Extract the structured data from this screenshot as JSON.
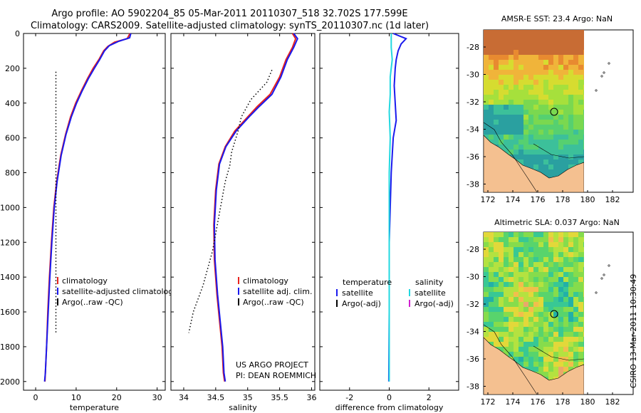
{
  "header": {
    "line1": "Argo profile: AO 5902204_85 05-Mar-2011 20110307_518 32.702S 177.599E",
    "line2": "Climatology: CARS2009. Satellite-adjusted climatology: synTS_20110307.nc (1d later)"
  },
  "credit": {
    "project": "US ARGO PROJECT",
    "pi": "PI: DEAN ROEMMICH"
  },
  "stamp": "CSIRO 13-Mar-2011 10:30:49",
  "colors": {
    "red": "#e8231e",
    "blue": "#1a1aee",
    "cyan": "#22d8e0",
    "magenta": "#d020d0",
    "black": "#000000"
  },
  "chart_data": [
    {
      "type": "line",
      "xlabel": "temperature",
      "xticks": [
        "0",
        "10",
        "20",
        "30"
      ],
      "xlim": [
        -3,
        32
      ],
      "ylim": [
        2050,
        0
      ],
      "yticks": [
        "0",
        "200",
        "400",
        "600",
        "800",
        "1000",
        "1200",
        "1400",
        "1600",
        "1800",
        "2000"
      ],
      "legend": [
        "climatology",
        "satellite-adjusted climatology",
        "Argo(..raw -QC)"
      ],
      "series": [
        {
          "name": "climatology",
          "color": "red",
          "x": [
            23.3,
            22.6,
            19.5,
            17.8,
            16.8,
            15.6,
            14.2,
            12.8,
            11.3,
            9.9,
            8.6,
            7.4,
            6.2,
            5.2,
            4.5,
            3.9,
            3.4,
            3.0,
            2.7,
            2.4,
            2.3
          ],
          "y": [
            0,
            30,
            50,
            75,
            100,
            150,
            200,
            260,
            330,
            400,
            480,
            580,
            700,
            850,
            1000,
            1200,
            1400,
            1600,
            1800,
            1950,
            2000
          ]
        },
        {
          "name": "satellite-adjusted climatology",
          "color": "blue",
          "x": [
            23.5,
            23.2,
            20.5,
            18.2,
            17.0,
            15.8,
            14.5,
            13.0,
            11.5,
            10.1,
            8.8,
            7.5,
            6.3,
            5.3,
            4.6,
            4.0,
            3.5,
            3.1,
            2.7,
            2.4,
            2.2
          ],
          "y": [
            0,
            25,
            45,
            70,
            100,
            150,
            200,
            260,
            330,
            400,
            480,
            580,
            700,
            850,
            1000,
            1200,
            1400,
            1600,
            1800,
            1950,
            2000
          ]
        },
        {
          "name": "Argo(..raw -QC)",
          "color": "black",
          "style": "dotted",
          "x": [
            5,
            5
          ],
          "y": [
            220,
            1730
          ]
        }
      ]
    },
    {
      "type": "line",
      "xlabel": "salinity",
      "xticks": [
        "34",
        "34.5",
        "35",
        "35.5",
        "36"
      ],
      "xlim": [
        33.8,
        36.05
      ],
      "ylim": [
        2050,
        0
      ],
      "legend": [
        "climatology",
        "satellite adj. clim.",
        "Argo(..raw -QC)"
      ],
      "series": [
        {
          "name": "climatology",
          "color": "red",
          "x": [
            35.7,
            35.75,
            35.7,
            35.6,
            35.5,
            35.35,
            35.15,
            35.0,
            34.8,
            34.65,
            34.55,
            34.5,
            34.47,
            34.48,
            34.52,
            34.56,
            34.6,
            34.62,
            34.64
          ],
          "y": [
            0,
            30,
            80,
            150,
            250,
            350,
            420,
            480,
            560,
            650,
            750,
            900,
            1100,
            1300,
            1500,
            1650,
            1800,
            1950,
            2000
          ]
        },
        {
          "name": "satellite adj. clim.",
          "color": "blue",
          "x": [
            35.72,
            35.78,
            35.72,
            35.62,
            35.52,
            35.38,
            35.18,
            35.02,
            34.82,
            34.66,
            34.56,
            34.51,
            34.48,
            34.49,
            34.53,
            34.57,
            34.61,
            34.63,
            34.65
          ],
          "y": [
            0,
            30,
            80,
            150,
            250,
            350,
            420,
            480,
            560,
            650,
            750,
            900,
            1100,
            1300,
            1500,
            1650,
            1800,
            1950,
            2000
          ]
        },
        {
          "name": "Argo(..raw -QC)",
          "color": "black",
          "style": "dotted",
          "x": [
            35.38,
            35.3,
            35.05,
            34.9,
            34.85,
            34.75,
            34.72,
            34.65,
            34.6,
            34.55,
            34.45,
            34.3,
            34.15,
            34.08
          ],
          "y": [
            210,
            280,
            380,
            480,
            560,
            680,
            760,
            850,
            950,
            1050,
            1250,
            1450,
            1600,
            1720
          ]
        }
      ]
    },
    {
      "type": "line",
      "xlabel": "difference from climatology",
      "xticks": [
        "-2",
        "0",
        "2"
      ],
      "xlim": [
        -3.5,
        3.5
      ],
      "ylim": [
        2050,
        0
      ],
      "legend_left": [
        "temperature",
        "satellite",
        "Argo(-adj)"
      ],
      "legend_right": [
        "salinity",
        "satellite",
        "Argo(-adj)"
      ],
      "series": [
        {
          "name": "temperature satellite",
          "color": "blue",
          "x": [
            0.2,
            0.85,
            0.6,
            0.45,
            0.35,
            0.3,
            0.25,
            0.3,
            0.35,
            0.2,
            0.15,
            0.1,
            0.05,
            0.0,
            0.0,
            0.0,
            -0.02
          ],
          "y": [
            0,
            30,
            60,
            100,
            150,
            200,
            300,
            400,
            500,
            600,
            700,
            800,
            1000,
            1200,
            1400,
            1600,
            2000
          ]
        },
        {
          "name": "salinity satellite",
          "color": "cyan",
          "x": [
            0.1,
            0.1,
            0.15,
            0.05,
            0.05,
            0.0,
            0.05,
            0.0,
            0.0,
            0.0,
            0.0
          ],
          "y": [
            0,
            80,
            150,
            250,
            350,
            450,
            600,
            800,
            1200,
            1600,
            2000
          ]
        }
      ]
    }
  ],
  "maps": [
    {
      "title": "AMSR-E SST: 23.4 Argo: NaN",
      "xticks": [
        "172",
        "174",
        "176",
        "178",
        "180",
        "182"
      ],
      "yticks": [
        "-28",
        "-30",
        "-32",
        "-34",
        "-36",
        "-38"
      ]
    },
    {
      "title": "Altimetric SLA: 0.037 Argo: NaN",
      "xticks": [
        "172",
        "174",
        "176",
        "178",
        "180",
        "182"
      ],
      "yticks": [
        "-28",
        "-30",
        "-32",
        "-34",
        "-36",
        "-38"
      ]
    }
  ]
}
